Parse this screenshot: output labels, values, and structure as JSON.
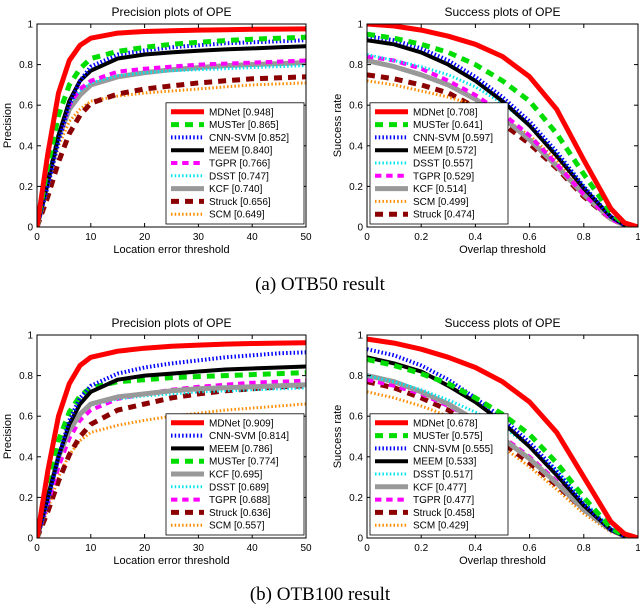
{
  "figure": {
    "captions": [
      "(a) OTB50 result",
      "(b) OTB100 result"
    ]
  },
  "series_styles": {
    "MDNet": {
      "color": "#ff0000",
      "dash": "solid",
      "width": 5
    },
    "MUSTer": {
      "color": "#00dd00",
      "dash": "dashed",
      "width": 5
    },
    "CNN-SVM": {
      "color": "#0000ff",
      "dash": "dotted",
      "width": 4
    },
    "MEEM": {
      "color": "#000000",
      "dash": "solid",
      "width": 4
    },
    "TGPR": {
      "color": "#ff00ff",
      "dash": "dashed",
      "width": 4
    },
    "DSST": {
      "color": "#00e5ee",
      "dash": "dotted",
      "width": 3
    },
    "KCF": {
      "color": "#999999",
      "dash": "solid",
      "width": 5
    },
    "Struck": {
      "color": "#8b0000",
      "dash": "dashed",
      "width": 5
    },
    "SCM": {
      "color": "#ff8c00",
      "dash": "dotted",
      "width": 3
    }
  },
  "chart_data": [
    {
      "type": "line",
      "kind": "precision",
      "title": "Precision plots of OPE",
      "xlabel": "Location error threshold",
      "ylabel": "Precision",
      "xlim": [
        0,
        50
      ],
      "ylim": [
        0,
        1
      ],
      "xticks": [
        "0",
        "10",
        "20",
        "30",
        "40",
        "50"
      ],
      "yticks": [
        "0",
        "0.2",
        "0.4",
        "0.6",
        "0.8",
        "1"
      ],
      "legend_position": "bottom-right",
      "x": [
        0,
        2,
        4,
        6,
        8,
        10,
        15,
        20,
        25,
        30,
        35,
        40,
        45,
        50
      ],
      "series": [
        {
          "name": "MDNet",
          "legend": "MDNet [0.948]",
          "values": [
            0,
            0.36,
            0.66,
            0.82,
            0.895,
            0.93,
            0.955,
            0.963,
            0.967,
            0.97,
            0.972,
            0.974,
            0.975,
            0.976
          ]
        },
        {
          "name": "MUSTer",
          "legend": "MUSTer [0.865]",
          "values": [
            0,
            0.3,
            0.55,
            0.7,
            0.78,
            0.83,
            0.865,
            0.885,
            0.9,
            0.91,
            0.918,
            0.925,
            0.93,
            0.935
          ]
        },
        {
          "name": "CNN-SVM",
          "legend": "CNN-SVM [0.852]",
          "values": [
            0,
            0.2,
            0.42,
            0.6,
            0.72,
            0.79,
            0.85,
            0.87,
            0.885,
            0.895,
            0.905,
            0.91,
            0.915,
            0.92
          ]
        },
        {
          "name": "MEEM",
          "legend": "MEEM [0.840]",
          "values": [
            0,
            0.22,
            0.45,
            0.62,
            0.72,
            0.77,
            0.83,
            0.85,
            0.86,
            0.868,
            0.875,
            0.88,
            0.885,
            0.89
          ]
        },
        {
          "name": "TGPR",
          "legend": "TGPR [0.766]",
          "values": [
            0,
            0.22,
            0.45,
            0.6,
            0.68,
            0.72,
            0.765,
            0.78,
            0.79,
            0.8,
            0.805,
            0.81,
            0.815,
            0.82
          ]
        },
        {
          "name": "DSST",
          "legend": "DSST [0.747]",
          "values": [
            0,
            0.25,
            0.47,
            0.6,
            0.67,
            0.71,
            0.745,
            0.76,
            0.77,
            0.775,
            0.78,
            0.785,
            0.79,
            0.795
          ]
        },
        {
          "name": "KCF",
          "legend": "KCF [0.740]",
          "values": [
            0,
            0.22,
            0.44,
            0.58,
            0.65,
            0.7,
            0.74,
            0.76,
            0.775,
            0.785,
            0.795,
            0.8,
            0.805,
            0.81
          ]
        },
        {
          "name": "Struck",
          "legend": "Struck [0.656]",
          "values": [
            0,
            0.15,
            0.32,
            0.46,
            0.55,
            0.61,
            0.655,
            0.68,
            0.695,
            0.71,
            0.72,
            0.73,
            0.735,
            0.74
          ]
        },
        {
          "name": "SCM",
          "legend": "SCM [0.649]",
          "values": [
            0,
            0.2,
            0.4,
            0.52,
            0.58,
            0.62,
            0.645,
            0.66,
            0.67,
            0.68,
            0.69,
            0.7,
            0.705,
            0.71
          ]
        }
      ]
    },
    {
      "type": "line",
      "kind": "success",
      "title": "Success plots of OPE",
      "xlabel": "Overlap threshold",
      "ylabel": "Success rate",
      "xlim": [
        0,
        1
      ],
      "ylim": [
        0,
        1
      ],
      "xticks": [
        "0",
        "0.2",
        "0.4",
        "0.6",
        "0.8",
        "1"
      ],
      "yticks": [
        "0",
        "0.2",
        "0.4",
        "0.6",
        "0.8",
        "1"
      ],
      "legend_position": "bottom-left",
      "x": [
        0,
        0.1,
        0.2,
        0.3,
        0.4,
        0.5,
        0.6,
        0.7,
        0.8,
        0.9,
        0.95,
        1.0
      ],
      "series": [
        {
          "name": "MDNet",
          "legend": "MDNet [0.708]",
          "values": [
            1.0,
            0.99,
            0.97,
            0.94,
            0.9,
            0.84,
            0.74,
            0.58,
            0.33,
            0.09,
            0.02,
            0
          ]
        },
        {
          "name": "MUSTer",
          "legend": "MUSTer [0.641]",
          "values": [
            0.95,
            0.93,
            0.9,
            0.86,
            0.8,
            0.72,
            0.62,
            0.46,
            0.26,
            0.07,
            0.015,
            0
          ]
        },
        {
          "name": "CNN-SVM",
          "legend": "CNN-SVM [0.597]",
          "values": [
            0.94,
            0.92,
            0.88,
            0.82,
            0.74,
            0.64,
            0.52,
            0.37,
            0.2,
            0.05,
            0.01,
            0
          ]
        },
        {
          "name": "MEEM",
          "legend": "MEEM [0.572]",
          "values": [
            0.92,
            0.9,
            0.86,
            0.8,
            0.72,
            0.62,
            0.5,
            0.35,
            0.19,
            0.05,
            0.01,
            0
          ]
        },
        {
          "name": "DSST",
          "legend": "DSST [0.557]",
          "values": [
            0.85,
            0.82,
            0.79,
            0.75,
            0.69,
            0.61,
            0.5,
            0.36,
            0.2,
            0.05,
            0.01,
            0
          ]
        },
        {
          "name": "TGPR",
          "legend": "TGPR [0.529]",
          "values": [
            0.84,
            0.82,
            0.78,
            0.72,
            0.65,
            0.56,
            0.45,
            0.31,
            0.16,
            0.04,
            0.01,
            0
          ]
        },
        {
          "name": "KCF",
          "legend": "KCF [0.514]",
          "values": [
            0.82,
            0.79,
            0.75,
            0.7,
            0.63,
            0.54,
            0.43,
            0.3,
            0.16,
            0.04,
            0.01,
            0
          ]
        },
        {
          "name": "SCM",
          "legend": "SCM [0.499]",
          "values": [
            0.72,
            0.7,
            0.67,
            0.64,
            0.6,
            0.54,
            0.45,
            0.33,
            0.18,
            0.05,
            0.01,
            0
          ]
        },
        {
          "name": "Struck",
          "legend": "Struck [0.474]",
          "values": [
            0.75,
            0.73,
            0.7,
            0.66,
            0.59,
            0.51,
            0.41,
            0.29,
            0.15,
            0.04,
            0.01,
            0
          ]
        }
      ]
    },
    {
      "type": "line",
      "kind": "precision",
      "title": "Precision plots of OPE",
      "xlabel": "Location error threshold",
      "ylabel": "Precision",
      "xlim": [
        0,
        50
      ],
      "ylim": [
        0,
        1
      ],
      "xticks": [
        "0",
        "10",
        "20",
        "30",
        "40",
        "50"
      ],
      "yticks": [
        "0",
        "0.2",
        "0.4",
        "0.6",
        "0.8",
        "1"
      ],
      "legend_position": "bottom-right",
      "x": [
        0,
        2,
        4,
        6,
        8,
        10,
        15,
        20,
        25,
        30,
        35,
        40,
        45,
        50
      ],
      "series": [
        {
          "name": "MDNet",
          "legend": "MDNet [0.909]",
          "values": [
            0,
            0.33,
            0.6,
            0.76,
            0.85,
            0.89,
            0.92,
            0.935,
            0.945,
            0.95,
            0.955,
            0.958,
            0.96,
            0.962
          ]
        },
        {
          "name": "CNN-SVM",
          "legend": "CNN-SVM [0.814]",
          "values": [
            0,
            0.18,
            0.4,
            0.58,
            0.69,
            0.75,
            0.81,
            0.84,
            0.86,
            0.875,
            0.89,
            0.9,
            0.91,
            0.915
          ]
        },
        {
          "name": "MEEM",
          "legend": "MEEM [0.786]",
          "values": [
            0,
            0.2,
            0.4,
            0.56,
            0.66,
            0.72,
            0.78,
            0.8,
            0.81,
            0.82,
            0.83,
            0.835,
            0.84,
            0.845
          ]
        },
        {
          "name": "MUSTer",
          "legend": "MUSTer [0.774]",
          "values": [
            0,
            0.25,
            0.48,
            0.62,
            0.7,
            0.74,
            0.77,
            0.78,
            0.79,
            0.795,
            0.8,
            0.805,
            0.81,
            0.815
          ]
        },
        {
          "name": "KCF",
          "legend": "KCF [0.695]",
          "values": [
            0,
            0.2,
            0.4,
            0.53,
            0.61,
            0.66,
            0.695,
            0.71,
            0.725,
            0.735,
            0.74,
            0.745,
            0.75,
            0.755
          ]
        },
        {
          "name": "DSST",
          "legend": "DSST [0.689]",
          "values": [
            0,
            0.22,
            0.42,
            0.54,
            0.61,
            0.655,
            0.685,
            0.7,
            0.71,
            0.72,
            0.725,
            0.73,
            0.735,
            0.74
          ]
        },
        {
          "name": "TGPR",
          "legend": "TGPR [0.688]",
          "values": [
            0,
            0.17,
            0.35,
            0.49,
            0.58,
            0.63,
            0.685,
            0.71,
            0.73,
            0.745,
            0.755,
            0.765,
            0.77,
            0.775
          ]
        },
        {
          "name": "Struck",
          "legend": "Struck [0.636]",
          "values": [
            0,
            0.13,
            0.28,
            0.41,
            0.5,
            0.56,
            0.63,
            0.66,
            0.69,
            0.71,
            0.725,
            0.735,
            0.745,
            0.75
          ]
        },
        {
          "name": "SCM",
          "legend": "SCM [0.557]",
          "values": [
            0,
            0.14,
            0.3,
            0.41,
            0.48,
            0.52,
            0.555,
            0.58,
            0.6,
            0.615,
            0.63,
            0.64,
            0.65,
            0.66
          ]
        }
      ]
    },
    {
      "type": "line",
      "kind": "success",
      "title": "Success plots of OPE",
      "xlabel": "Overlap threshold",
      "ylabel": "Success rate",
      "xlim": [
        0,
        1
      ],
      "ylim": [
        0,
        1
      ],
      "xticks": [
        "0",
        "0.2",
        "0.4",
        "0.6",
        "0.8",
        "1"
      ],
      "yticks": [
        "0",
        "0.2",
        "0.4",
        "0.6",
        "0.8",
        "1"
      ],
      "legend_position": "bottom-left",
      "x": [
        0,
        0.1,
        0.2,
        0.3,
        0.4,
        0.5,
        0.6,
        0.7,
        0.8,
        0.9,
        0.95,
        1.0
      ],
      "series": [
        {
          "name": "MDNet",
          "legend": "MDNet [0.678]",
          "values": [
            0.98,
            0.96,
            0.93,
            0.89,
            0.84,
            0.77,
            0.67,
            0.52,
            0.3,
            0.08,
            0.02,
            0
          ]
        },
        {
          "name": "MUSTer",
          "legend": "MUSTer [0.575]",
          "values": [
            0.88,
            0.85,
            0.81,
            0.76,
            0.69,
            0.61,
            0.51,
            0.37,
            0.2,
            0.05,
            0.01,
            0
          ]
        },
        {
          "name": "CNN-SVM",
          "legend": "CNN-SVM [0.555]",
          "values": [
            0.93,
            0.9,
            0.85,
            0.78,
            0.69,
            0.59,
            0.47,
            0.33,
            0.17,
            0.04,
            0.01,
            0
          ]
        },
        {
          "name": "MEEM",
          "legend": "MEEM [0.533]",
          "values": [
            0.89,
            0.86,
            0.82,
            0.75,
            0.67,
            0.57,
            0.45,
            0.31,
            0.16,
            0.04,
            0.01,
            0
          ]
        },
        {
          "name": "DSST",
          "legend": "DSST [0.517]",
          "values": [
            0.8,
            0.77,
            0.73,
            0.68,
            0.62,
            0.55,
            0.45,
            0.33,
            0.18,
            0.05,
            0.01,
            0
          ]
        },
        {
          "name": "KCF",
          "legend": "KCF [0.477]",
          "values": [
            0.8,
            0.77,
            0.72,
            0.66,
            0.58,
            0.49,
            0.39,
            0.27,
            0.14,
            0.04,
            0.01,
            0
          ]
        },
        {
          "name": "TGPR",
          "legend": "TGPR [0.477]",
          "values": [
            0.78,
            0.75,
            0.71,
            0.65,
            0.58,
            0.5,
            0.4,
            0.28,
            0.15,
            0.04,
            0.01,
            0
          ]
        },
        {
          "name": "Struck",
          "legend": "Struck [0.458]",
          "values": [
            0.77,
            0.74,
            0.69,
            0.63,
            0.55,
            0.47,
            0.37,
            0.26,
            0.14,
            0.04,
            0.01,
            0
          ]
        },
        {
          "name": "SCM",
          "legend": "SCM [0.429]",
          "values": [
            0.72,
            0.69,
            0.65,
            0.6,
            0.53,
            0.45,
            0.35,
            0.24,
            0.12,
            0.03,
            0.01,
            0
          ]
        }
      ]
    }
  ]
}
